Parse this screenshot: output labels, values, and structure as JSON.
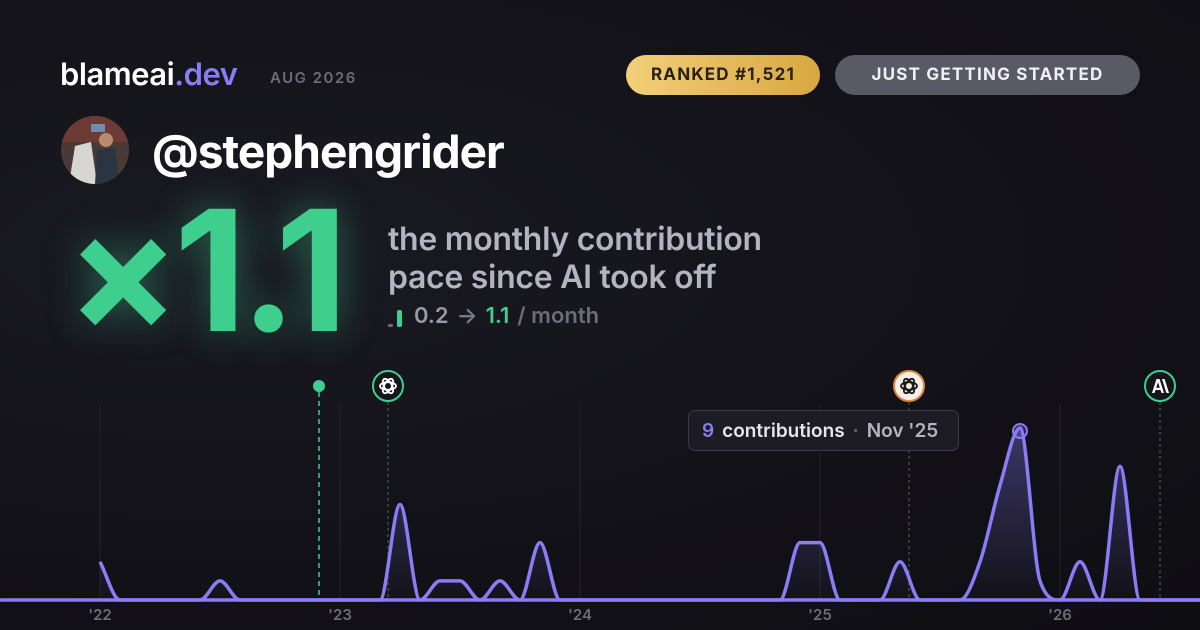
{
  "header": {
    "brand": "blameai",
    "brand_tld": ".dev",
    "period": "AUG 2026"
  },
  "badges": {
    "rank": "RANKED #1,521",
    "level": "JUST GETTING STARTED"
  },
  "user": {
    "handle": "@stephengrider"
  },
  "headline": {
    "multiplier": "×1.1",
    "description_line1": "the monthly contribution",
    "description_line2": "pace since AI took off",
    "before": 0.2,
    "arrow": "→",
    "after": 1.1,
    "unit": "/ month"
  },
  "tooltip": {
    "label": "contributions",
    "separator": "·"
  },
  "chart_data": {
    "type": "line",
    "categories": [
      "Jan '22",
      "Feb '22",
      "Mar '22",
      "Apr '22",
      "May '22",
      "Jun '22",
      "Jul '22",
      "Aug '22",
      "Sep '22",
      "Oct '22",
      "Nov '22",
      "Dec '22",
      "Jan '23",
      "Feb '23",
      "Mar '23",
      "Apr '23",
      "May '23",
      "Jun '23",
      "Jul '23",
      "Aug '23",
      "Sep '23",
      "Oct '23",
      "Nov '23",
      "Dec '23",
      "Jan '24",
      "Feb '24",
      "Mar '24",
      "Apr '24",
      "May '24",
      "Jun '24",
      "Jul '24",
      "Aug '24",
      "Sep '24",
      "Oct '24",
      "Nov '24",
      "Dec '24",
      "Jan '25",
      "Feb '25",
      "Mar '25",
      "Apr '25",
      "May '25",
      "Jun '25",
      "Jul '25",
      "Aug '25",
      "Sep '25",
      "Oct '25",
      "Nov '25",
      "Dec '25",
      "Jan '26",
      "Feb '26",
      "Mar '26",
      "Apr '26",
      "May '26",
      "Jun '26",
      "Jul '26",
      "Aug '26"
    ],
    "series": [
      {
        "name": "contributions",
        "color": "#8b7cf6",
        "values": [
          2,
          0,
          0,
          0,
          0,
          0,
          1,
          0,
          0,
          0,
          0,
          0,
          0,
          0,
          0,
          5,
          0,
          1,
          1,
          0,
          1,
          0,
          3,
          0,
          0,
          0,
          0,
          0,
          0,
          0,
          0,
          0,
          0,
          0,
          0,
          3,
          3,
          0,
          0,
          0,
          2,
          0,
          0,
          0,
          2,
          6,
          9,
          1,
          0,
          2,
          0,
          7,
          0,
          0,
          0,
          0
        ]
      }
    ],
    "ylim": [
      0,
      9
    ],
    "xticks": [
      {
        "value": 0,
        "label": "'22"
      },
      {
        "value": 12,
        "label": "'23"
      },
      {
        "value": 24,
        "label": "'24"
      },
      {
        "value": 36,
        "label": "'25"
      },
      {
        "value": 48,
        "label": "'26"
      }
    ],
    "grid": true,
    "highlight": 46
  }
}
